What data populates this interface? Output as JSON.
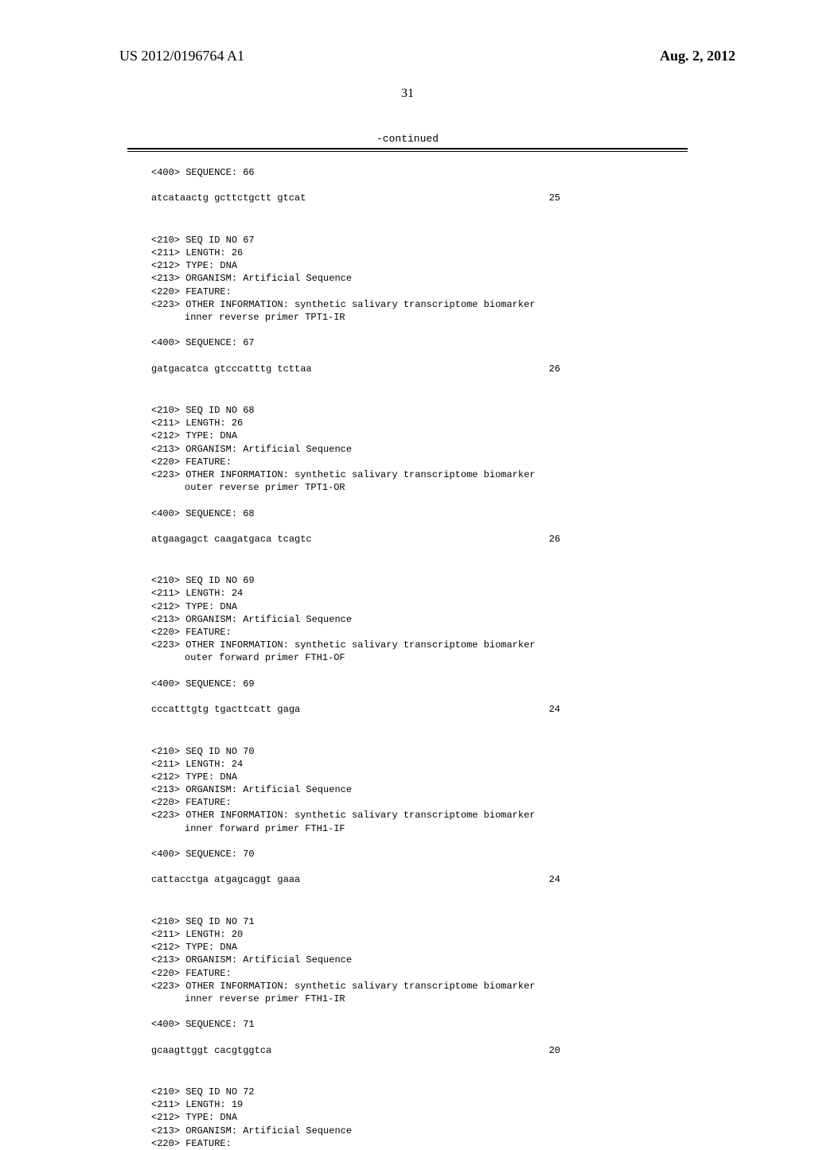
{
  "header": {
    "pub_number": "US 2012/0196764 A1",
    "pub_date": "Aug. 2, 2012",
    "page_number": "31",
    "continued": "-continued"
  },
  "blocks": [
    {
      "lines": [
        "<400> SEQUENCE: 66"
      ],
      "seq_row": {
        "text": "atcataactg gcttctgctt gtcat",
        "len": "25"
      }
    },
    {
      "lines": [
        "<210> SEQ ID NO 67",
        "<211> LENGTH: 26",
        "<212> TYPE: DNA",
        "<213> ORGANISM: Artificial Sequence",
        "<220> FEATURE:",
        "<223> OTHER INFORMATION: synthetic salivary transcriptome biomarker"
      ],
      "indent": "inner reverse primer TPT1-IR",
      "after": [
        "",
        "<400> SEQUENCE: 67"
      ],
      "seq_row": {
        "text": "gatgacatca gtcccatttg tcttaa",
        "len": "26"
      }
    },
    {
      "lines": [
        "<210> SEQ ID NO 68",
        "<211> LENGTH: 26",
        "<212> TYPE: DNA",
        "<213> ORGANISM: Artificial Sequence",
        "<220> FEATURE:",
        "<223> OTHER INFORMATION: synthetic salivary transcriptome biomarker"
      ],
      "indent": "outer reverse primer TPT1-OR",
      "after": [
        "",
        "<400> SEQUENCE: 68"
      ],
      "seq_row": {
        "text": "atgaagagct caagatgaca tcagtc",
        "len": "26"
      }
    },
    {
      "lines": [
        "<210> SEQ ID NO 69",
        "<211> LENGTH: 24",
        "<212> TYPE: DNA",
        "<213> ORGANISM: Artificial Sequence",
        "<220> FEATURE:",
        "<223> OTHER INFORMATION: synthetic salivary transcriptome biomarker"
      ],
      "indent": "outer forward primer FTH1-OF",
      "after": [
        "",
        "<400> SEQUENCE: 69"
      ],
      "seq_row": {
        "text": "cccatttgtg tgacttcatt gaga",
        "len": "24"
      }
    },
    {
      "lines": [
        "<210> SEQ ID NO 70",
        "<211> LENGTH: 24",
        "<212> TYPE: DNA",
        "<213> ORGANISM: Artificial Sequence",
        "<220> FEATURE:",
        "<223> OTHER INFORMATION: synthetic salivary transcriptome biomarker"
      ],
      "indent": "inner forward primer FTH1-IF",
      "after": [
        "",
        "<400> SEQUENCE: 70"
      ],
      "seq_row": {
        "text": "cattacctga atgagcaggt gaaa",
        "len": "24"
      }
    },
    {
      "lines": [
        "<210> SEQ ID NO 71",
        "<211> LENGTH: 20",
        "<212> TYPE: DNA",
        "<213> ORGANISM: Artificial Sequence",
        "<220> FEATURE:",
        "<223> OTHER INFORMATION: synthetic salivary transcriptome biomarker"
      ],
      "indent": "inner reverse primer FTH1-IR",
      "after": [
        "",
        "<400> SEQUENCE: 71"
      ],
      "seq_row": {
        "text": "gcaagttggt cacgtggtca",
        "len": "20"
      }
    },
    {
      "lines": [
        "<210> SEQ ID NO 72",
        "<211> LENGTH: 19",
        "<212> TYPE: DNA",
        "<213> ORGANISM: Artificial Sequence",
        "<220> FEATURE:"
      ]
    }
  ]
}
